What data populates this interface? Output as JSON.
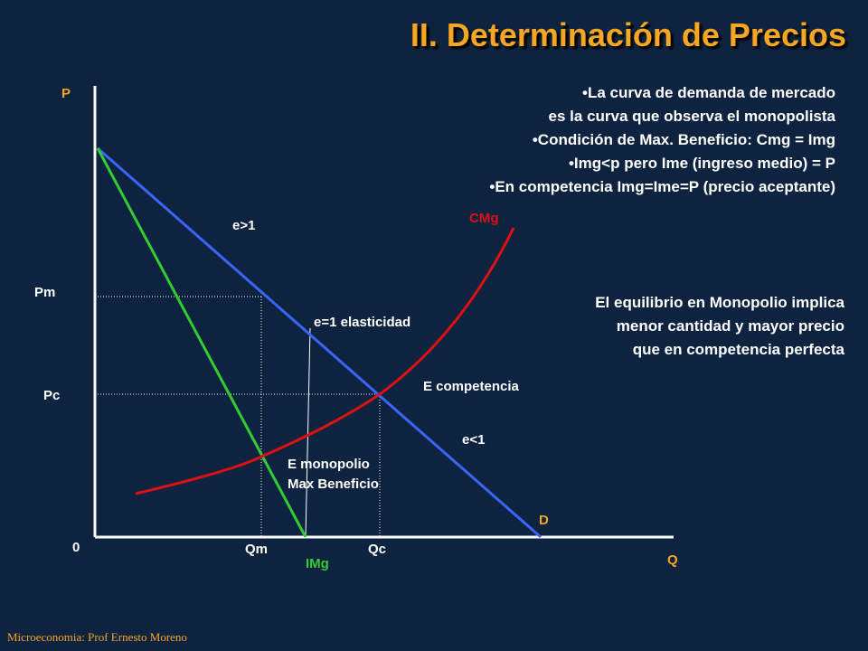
{
  "title": "II. Determinación de Precios",
  "bullets": [
    "•La curva de demanda de mercado",
    "es la curva que observa el monopolista",
    "•Condición de Max. Beneficio: Cmg = Img",
    "•Img<p pero Ime (ingreso medio) = P",
    "•En competencia Img=Ime=P (precio aceptante)"
  ],
  "note": [
    "El equilibrio en Monopolio implica",
    "menor cantidad y mayor precio",
    "que en competencia perfecta"
  ],
  "footer": "Microeconomia: Prof Ernesto Moreno",
  "diagram": {
    "axis_p": "P",
    "axis_q": "Q",
    "origin": "0",
    "pm": "Pm",
    "pc": "Pc",
    "qm": "Qm",
    "qc": "Qc",
    "demand": "D",
    "img": "IMg",
    "cmg": "CMg",
    "elastic": "e>1",
    "unit_elastic": "e=1 elasticidad",
    "inelastic": "e<1",
    "e_competencia": "E competencia",
    "e_monopolio_1": "E monopolio",
    "e_monopolio_2": "Max Beneficio"
  },
  "colors": {
    "demand": "#3a66ff",
    "img": "#33cc33",
    "cmg": "#dd1111",
    "axis_labels": "#f5a623",
    "labels": "#ffffff"
  }
}
